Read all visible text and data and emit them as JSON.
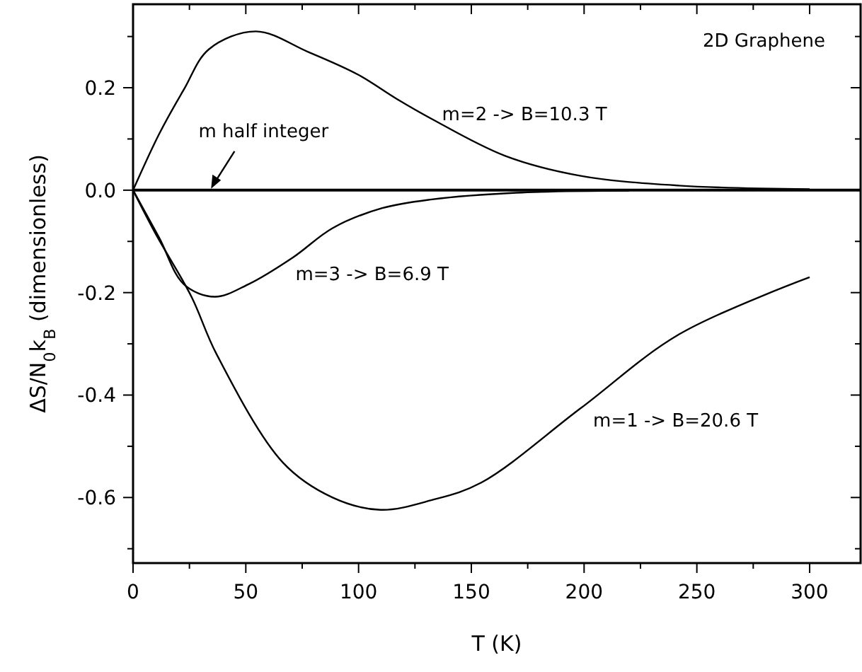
{
  "chart_data": {
    "type": "line",
    "xlabel": "T (K)",
    "ylabel": "ΔS/N$_{0}$k$_{B}$ (dimensionless)",
    "xlim": [
      0,
      322.6
    ],
    "ylim": [
      -0.728,
      0.363
    ],
    "xticks": [
      0,
      {
        "value": 25,
        "label": null
      },
      50,
      {
        "value": 75,
        "label": null
      },
      100,
      {
        "value": 125,
        "label": null
      },
      150,
      {
        "value": 175,
        "label": null
      },
      200,
      {
        "value": 225,
        "label": null
      },
      250,
      {
        "value": 275,
        "label": null
      },
      300
    ],
    "yticks": [
      {
        "value": -0.7,
        "label": null
      },
      -0.6,
      {
        "value": -0.5,
        "label": null
      },
      -0.4,
      {
        "value": -0.3,
        "label": null
      },
      -0.2,
      {
        "value": -0.1,
        "label": null
      },
      {
        "value": 0,
        "label": "0.0"
      },
      {
        "value": 0.1,
        "label": null
      },
      0.2,
      {
        "value": 0.3,
        "label": null
      }
    ],
    "series": [
      {
        "name": "m=2 -> B=10.3 T",
        "color": "#000000",
        "x": [
          0,
          11.6,
          22.6,
          33.6,
          54.5,
          77.6,
          99.6,
          117,
          132.5,
          165,
          198.5,
          242,
          300
        ],
        "values": [
          0,
          0.11,
          0.197,
          0.275,
          0.31,
          0.27,
          0.226,
          0.178,
          0.139,
          0.067,
          0.028,
          0.009,
          0.002
        ]
      },
      {
        "name": "m=3 -> B=6.9 T",
        "color": "#000000",
        "x": [
          0,
          11.6,
          22.6,
          36.2,
          51,
          71,
          88.5,
          110.5,
          132.5,
          170,
          220
        ],
        "values": [
          0,
          -0.093,
          -0.184,
          -0.208,
          -0.184,
          -0.131,
          -0.074,
          -0.035,
          -0.018,
          -0.005,
          -0.001
        ]
      },
      {
        "name": "m=1 -> B=20.6 T",
        "color": "#000000",
        "x": [
          0,
          10,
          25.9,
          36.9,
          66.5,
          88.5,
          109.7,
          132.5,
          154.4,
          198.4,
          242.3,
          300
        ],
        "values": [
          0,
          -0.085,
          -0.208,
          -0.319,
          -0.532,
          -0.6,
          -0.624,
          -0.605,
          -0.571,
          -0.426,
          -0.281,
          -0.17
        ]
      },
      {
        "name": "m half integer",
        "color": "#000000",
        "x": [
          0,
          322.6
        ],
        "values": [
          0,
          0
        ]
      }
    ],
    "annotations": [
      "2D Graphene"
    ],
    "grid": false,
    "marker": "none",
    "line_style": "solid"
  }
}
